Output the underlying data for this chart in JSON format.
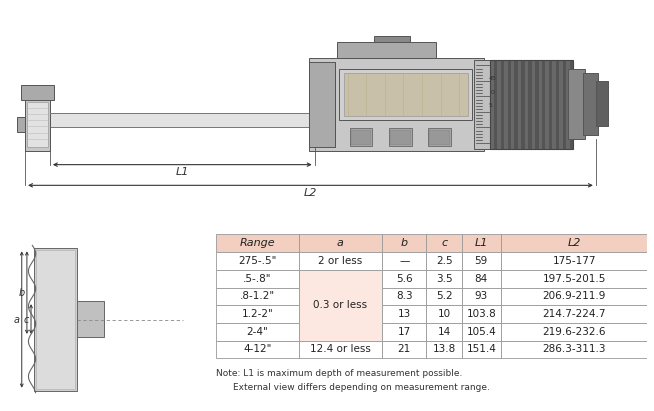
{
  "table_headers": [
    "Range",
    "a",
    "b",
    "c",
    "L1",
    "L2"
  ],
  "table_rows": [
    [
      "275-.5\"",
      "2 or less",
      "—",
      "2.5",
      "59",
      "175-177"
    ],
    [
      ".5-.8\"",
      "",
      "5.6",
      "3.5",
      "84",
      "197.5-201.5"
    ],
    [
      ".8-1.2\"",
      "0.3 or less",
      "8.3",
      "5.2",
      "93",
      "206.9-211.9"
    ],
    [
      "1.2-2\"",
      "",
      "13",
      "10",
      "103.8",
      "214.7-224.7"
    ],
    [
      "2-4\"",
      "",
      "17",
      "14",
      "105.4",
      "219.6-232.6"
    ],
    [
      "4-12\"",
      "12.4 or less",
      "21",
      "13.8",
      "151.4",
      "286.3-311.3"
    ]
  ],
  "note_line1": "Note: L1 is maximum depth of measurement possible.",
  "note_line2": "External view differs depending on measurement range.",
  "header_bg": "#f2cfc0",
  "row_bg_light": "#fce8e0",
  "row_bg_white": "#ffffff",
  "border_color": "#999999",
  "text_color": "#222222",
  "bg_color": "#ffffff",
  "fig_w": 6.54,
  "fig_h": 4.11,
  "fig_dpi": 100
}
